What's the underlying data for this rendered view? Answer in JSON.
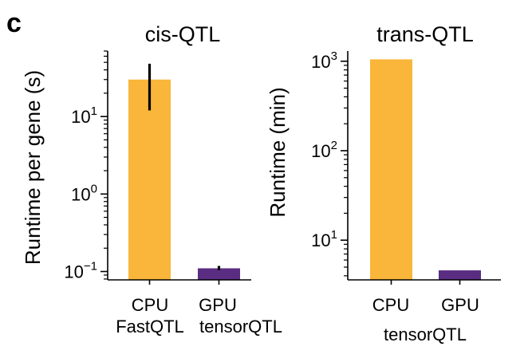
{
  "panel_label": "c",
  "colors": {
    "cpu": "#F9B63A",
    "gpu": "#5A2D82",
    "axis": "#000000"
  },
  "chart_data": [
    {
      "type": "bar",
      "title": "cis-QTL",
      "ylabel": "Runtime per gene (s)",
      "yscale": "log",
      "ylim": [
        0.078,
        70
      ],
      "yticks": [
        {
          "value": 10,
          "base": "10",
          "exp": "1"
        },
        {
          "value": 1,
          "base": "10",
          "exp": "0"
        },
        {
          "value": 0.1,
          "base": "10",
          "exp": "−1"
        }
      ],
      "categories": [
        "CPU",
        "GPU"
      ],
      "values": [
        30,
        0.11
      ],
      "error_low": [
        12,
        0.104
      ],
      "error_high": [
        48,
        0.118
      ],
      "colors": [
        "#F9B63A",
        "#5A2D82"
      ],
      "group_labels": [
        "FastQTL",
        "tensorQTL"
      ]
    },
    {
      "type": "bar",
      "title": "trans-QTL",
      "ylabel": "Runtime (min)",
      "yscale": "log",
      "ylim": [
        3.6,
        1300
      ],
      "yticks": [
        {
          "value": 1000,
          "base": "10",
          "exp": "3"
        },
        {
          "value": 100,
          "base": "10",
          "exp": "2"
        },
        {
          "value": 10,
          "base": "10",
          "exp": "1"
        }
      ],
      "categories": [
        "CPU",
        "GPU"
      ],
      "values": [
        1050,
        4.6
      ],
      "colors": [
        "#F9B63A",
        "#5A2D82"
      ],
      "group_labels": [
        "tensorQTL"
      ]
    }
  ]
}
